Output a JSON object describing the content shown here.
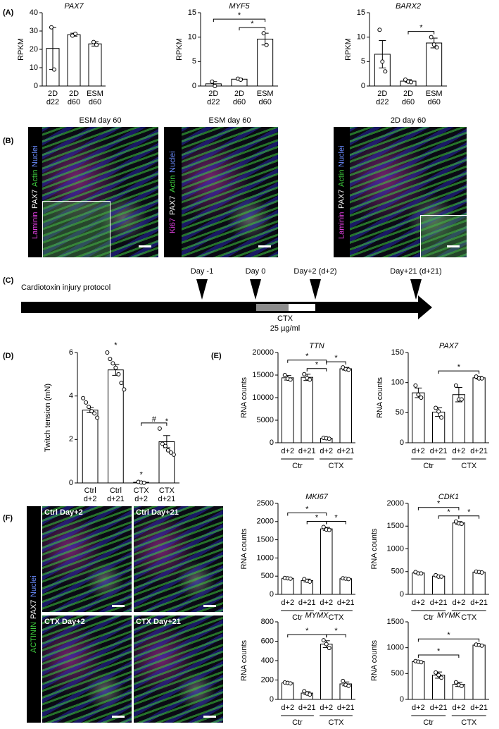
{
  "panel_labels": [
    "(A)",
    "(B)",
    "(C)",
    "(D)",
    "(E)",
    "(F)"
  ],
  "images_b": [
    {
      "title": "ESM day 60",
      "stain": [
        {
          "text": "Laminin",
          "color": "#e040e0"
        },
        {
          "text": "PAX7",
          "color": "#ffffff"
        },
        {
          "text": "Actin",
          "color": "#40d040"
        },
        {
          "text": "Nuclei",
          "color": "#6b8cff"
        }
      ]
    },
    {
      "title": "ESM day 60",
      "stain": [
        {
          "text": "Ki67",
          "color": "#e040e0"
        },
        {
          "text": "PAX7",
          "color": "#ffffff"
        },
        {
          "text": "Actin",
          "color": "#40d040"
        },
        {
          "text": "Nuclei",
          "color": "#6b8cff"
        }
      ]
    },
    {
      "title": "2D day 60",
      "stain": [
        {
          "text": "Laminin",
          "color": "#e040e0"
        },
        {
          "text": "PAX7",
          "color": "#ffffff"
        },
        {
          "text": "Actin",
          "color": "#40d040"
        },
        {
          "text": "Nuclei",
          "color": "#6b8cff"
        }
      ]
    }
  ],
  "images_f": {
    "stain": [
      {
        "text": "ACTININ",
        "color": "#40d040"
      },
      {
        "text": "PAX7",
        "color": "#ffffff"
      },
      {
        "text": "Nuclei",
        "color": "#6b8cff"
      }
    ],
    "panels": [
      "Ctrl Day+2",
      "Ctrl Day+21",
      "CTX Day+2",
      "CTX Day+21"
    ]
  },
  "timeline": {
    "label": "Cardiotoxin injury protocol",
    "events": [
      "Day -1",
      "Day 0",
      "Day+2 (d+2)",
      "Day+21 (d+21)"
    ],
    "treatment": "CTX",
    "dose": "25 µg/ml"
  },
  "chart_data": [
    {
      "type": "bar",
      "title": "PAX7",
      "ylabel": "RPKM",
      "categories": [
        [
          "2D",
          "d22"
        ],
        [
          "2D",
          "d60"
        ],
        [
          "ESM",
          "d60"
        ]
      ],
      "values": [
        20.5,
        28,
        23
      ],
      "errors": [
        11.5,
        0.8,
        1.2
      ],
      "points": [
        [
          32,
          9
        ],
        [
          27.5,
          28.5
        ],
        [
          24,
          22.5
        ]
      ],
      "ylim": [
        0,
        40
      ],
      "yticks": [
        0,
        10,
        20,
        30,
        40
      ]
    },
    {
      "type": "bar",
      "title": "MYF5",
      "ylabel": "RPKM",
      "categories": [
        [
          "2D",
          "d22"
        ],
        [
          "2D",
          "d60"
        ],
        [
          "ESM",
          "d60"
        ]
      ],
      "values": [
        0.45,
        1.4,
        9.6
      ],
      "errors": [
        0.45,
        0.15,
        1.2
      ],
      "points": [
        [
          0.9,
          0
        ],
        [
          1.5,
          1.3
        ],
        [
          10.8,
          8.4
        ]
      ],
      "ylim": [
        0,
        15
      ],
      "yticks": [
        0,
        5,
        10,
        15
      ],
      "significance": [
        {
          "from": 1,
          "to": 2,
          "label": "*"
        },
        {
          "from": 0,
          "to": 2,
          "label": "*"
        }
      ]
    },
    {
      "type": "bar",
      "title": "BARX2",
      "ylabel": "RPKM",
      "categories": [
        [
          "2D",
          "d22"
        ],
        [
          "2D",
          "d60"
        ],
        [
          "ESM",
          "d60"
        ]
      ],
      "values": [
        6.5,
        1,
        8.8
      ],
      "errors": [
        2.8,
        0.3,
        1.0
      ],
      "points": [
        [
          11.5,
          5,
          3
        ],
        [
          1.3,
          0.9,
          0.8
        ],
        [
          10,
          8.5,
          7.9
        ]
      ],
      "ylim": [
        0,
        15
      ],
      "yticks": [
        0,
        5,
        10,
        15
      ],
      "significance": [
        {
          "from": 1,
          "to": 2,
          "label": "*"
        }
      ]
    },
    {
      "type": "bar",
      "ylabel": "Twitch tension (mN)",
      "categories": [
        [
          "Ctrl",
          "d+2"
        ],
        [
          "Ctrl",
          "d+21"
        ],
        [
          "CTX",
          "d+2"
        ],
        [
          "CTX",
          "d+21"
        ]
      ],
      "values": [
        3.35,
        5.2,
        0.03,
        1.9
      ],
      "errors": [
        0.12,
        0.25,
        0.01,
        0.28
      ],
      "points": [
        [
          3.9,
          3.7,
          3.5,
          3.3,
          3.2,
          3.0
        ],
        [
          6.0,
          5.7,
          5.5,
          5.3,
          5.0,
          4.6,
          4.3
        ],
        [
          0.05,
          0.02,
          0.01
        ],
        [
          2.5,
          1.8,
          1.7,
          1.5,
          1.4,
          1.3
        ]
      ],
      "ylim": [
        0,
        6
      ],
      "yticks": [
        0,
        2,
        4,
        6
      ],
      "markers": [
        {
          "category": 1,
          "label": "*"
        },
        {
          "category": 2,
          "label": "*"
        },
        {
          "category": 3,
          "label": "*"
        }
      ],
      "significance": [
        {
          "from": 2,
          "to": 3,
          "label": "#"
        }
      ]
    },
    {
      "type": "bar",
      "title": "TTN",
      "ylabel": "RNA counts",
      "categories": [
        "d+2",
        "d+21",
        "d+2",
        "d+21"
      ],
      "groups": [
        "Ctr",
        "CTX"
      ],
      "values": [
        14400,
        14500,
        1000,
        16400
      ],
      "errors": [
        500,
        700,
        100,
        300
      ],
      "points": [
        [
          15000,
          14200,
          14000
        ],
        [
          15200,
          14300,
          14000
        ],
        [
          1100,
          1000,
          900
        ],
        [
          16700,
          16300,
          16200
        ]
      ],
      "ylim": [
        0,
        20000
      ],
      "yticks": [
        0,
        5000,
        10000,
        15000,
        20000
      ],
      "significance": [
        {
          "from": 1,
          "to": 2,
          "label": "*"
        },
        {
          "from": 0,
          "to": 2,
          "label": "*"
        },
        {
          "from": 2,
          "to": 3,
          "label": "*"
        }
      ]
    },
    {
      "type": "bar",
      "title": "PAX7",
      "ylabel": "RNA counts",
      "categories": [
        "d+2",
        "d+21",
        "d+2",
        "d+21"
      ],
      "groups": [
        "Ctr",
        "CTX"
      ],
      "values": [
        83,
        51,
        80,
        108
      ],
      "errors": [
        8,
        7,
        12,
        2
      ],
      "points": [
        [
          95,
          80,
          75
        ],
        [
          58,
          52,
          42
        ],
        [
          95,
          72,
          72
        ],
        [
          110,
          107,
          107
        ]
      ],
      "ylim": [
        0,
        150
      ],
      "yticks": [
        0,
        50,
        100,
        150
      ],
      "significance": [
        {
          "from": 1,
          "to": 3,
          "label": "*"
        }
      ]
    },
    {
      "type": "bar",
      "title": "MKI67",
      "ylabel": "RNA counts",
      "categories": [
        "d+2",
        "d+21",
        "d+2",
        "d+21"
      ],
      "groups": [
        "Ctr",
        "CTX"
      ],
      "values": [
        440,
        380,
        1800,
        430
      ],
      "errors": [
        20,
        40,
        40,
        10
      ],
      "points": [
        [
          450,
          440,
          430
        ],
        [
          420,
          370,
          350
        ],
        [
          1850,
          1780,
          1770
        ],
        [
          440,
          430,
          420
        ]
      ],
      "ylim": [
        0,
        2500
      ],
      "yticks": [
        0,
        500,
        1000,
        1500,
        2000,
        2500
      ],
      "significance": [
        {
          "from": 1,
          "to": 2,
          "label": "*"
        },
        {
          "from": 0,
          "to": 2,
          "label": "*"
        },
        {
          "from": 2,
          "to": 3,
          "label": "*"
        }
      ]
    },
    {
      "type": "bar",
      "title": "CDK1",
      "ylabel": "RNA counts",
      "categories": [
        "d+2",
        "d+21",
        "d+2",
        "d+21"
      ],
      "groups": [
        "Ctr",
        "CTX"
      ],
      "values": [
        470,
        400,
        1570,
        490
      ],
      "errors": [
        20,
        20,
        30,
        10
      ],
      "points": [
        [
          490,
          460,
          460
        ],
        [
          420,
          390,
          390
        ],
        [
          1600,
          1560,
          1550
        ],
        [
          500,
          490,
          480
        ]
      ],
      "ylim": [
        0,
        2000
      ],
      "yticks": [
        0,
        500,
        1000,
        1500,
        2000
      ],
      "significance": [
        {
          "from": 1,
          "to": 2,
          "label": "*"
        },
        {
          "from": 0,
          "to": 2,
          "label": "*"
        },
        {
          "from": 2,
          "to": 3,
          "label": "*"
        }
      ]
    },
    {
      "type": "bar",
      "title": "MYMX",
      "ylabel": "RNA counts",
      "categories": [
        "d+2",
        "d+21",
        "d+2",
        "d+21"
      ],
      "groups": [
        "Ctr",
        "CTX"
      ],
      "values": [
        170,
        65,
        570,
        160
      ],
      "errors": [
        5,
        15,
        35,
        20
      ],
      "points": [
        [
          175,
          170,
          165
        ],
        [
          85,
          60,
          50
        ],
        [
          610,
          570,
          530
        ],
        [
          190,
          150,
          140
        ]
      ],
      "ylim": [
        0,
        800
      ],
      "yticks": [
        0,
        200,
        400,
        600,
        800
      ],
      "significance": [
        {
          "from": 0,
          "to": 2,
          "label": "*"
        },
        {
          "from": 2,
          "to": 3,
          "label": "*"
        }
      ]
    },
    {
      "type": "bar",
      "title": "MYMK",
      "ylabel": "RNA counts",
      "categories": [
        "d+2",
        "d+21",
        "d+2",
        "d+21"
      ],
      "groups": [
        "Ctr",
        "CTX"
      ],
      "values": [
        730,
        470,
        290,
        1050
      ],
      "errors": [
        20,
        60,
        40,
        10
      ],
      "points": [
        [
          740,
          730,
          720
        ],
        [
          520,
          470,
          420
        ],
        [
          330,
          280,
          260
        ],
        [
          1060,
          1050,
          1040
        ]
      ],
      "ylim": [
        0,
        1500
      ],
      "yticks": [
        0,
        500,
        1000,
        1500
      ],
      "significance": [
        {
          "from": 0,
          "to": 2,
          "label": "*"
        },
        {
          "from": 0,
          "to": 3,
          "label": "*"
        }
      ]
    }
  ]
}
